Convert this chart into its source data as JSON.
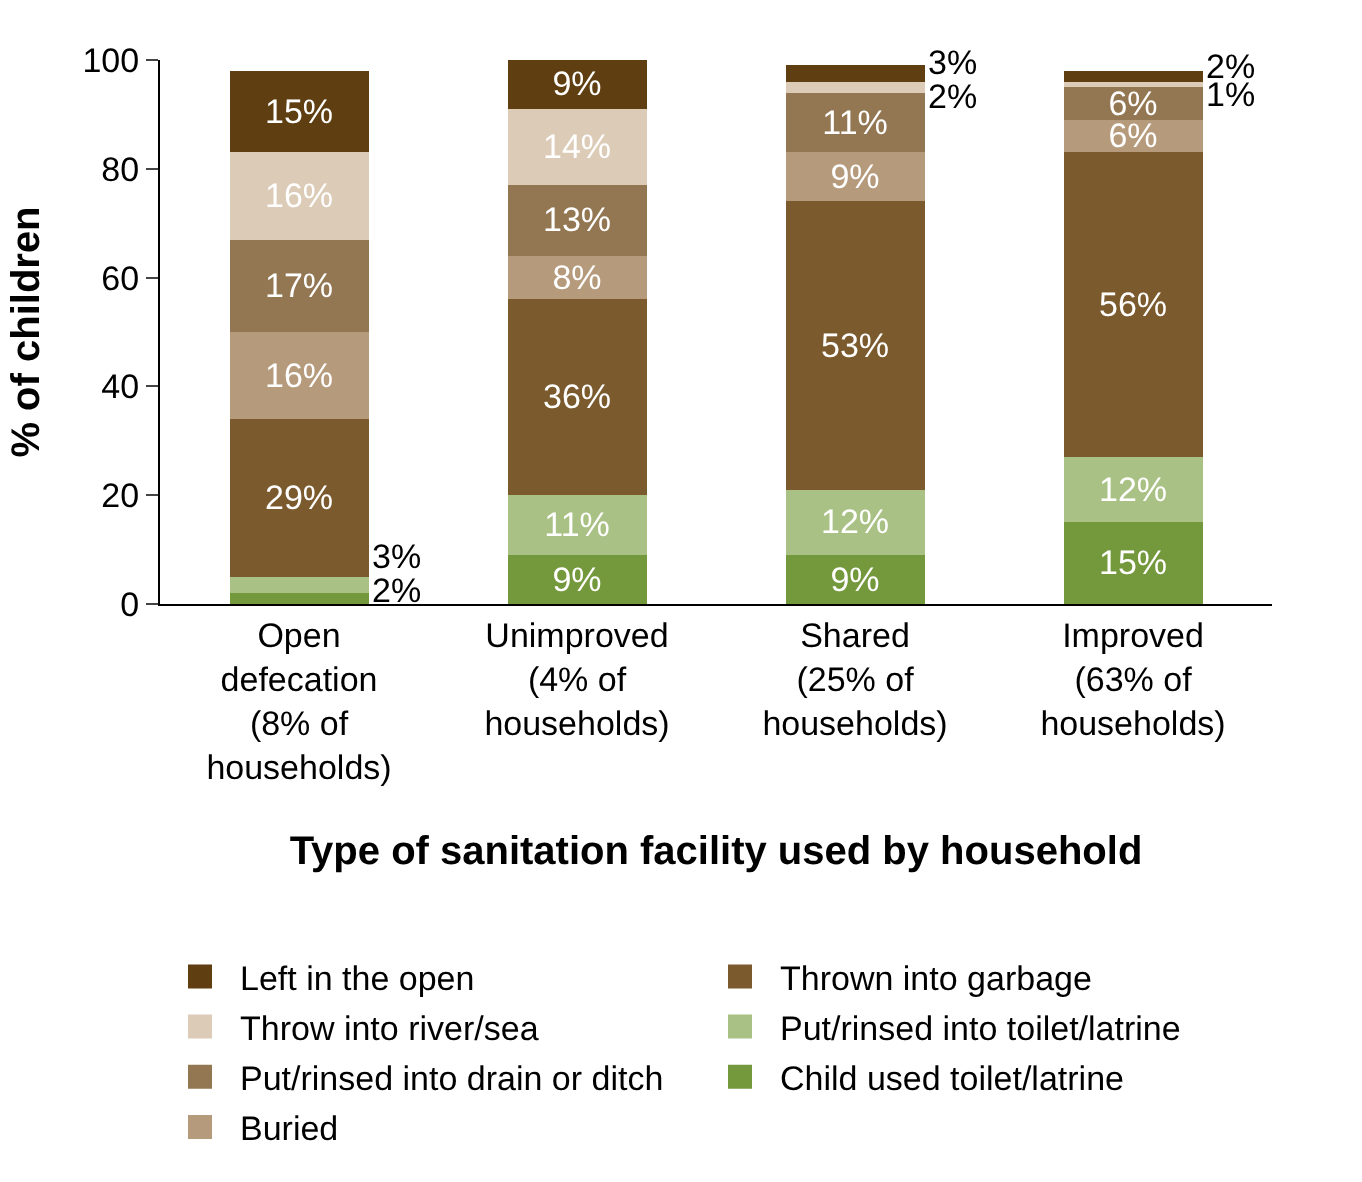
{
  "chart_data": {
    "type": "bar",
    "stacked": true,
    "xlabel": "Type of sanitation facility used by household",
    "ylabel": "% of children",
    "categories": [
      "Open\ndefecation\n(8% of\nhouseholds)",
      "Unimproved\n(4% of\nhouseholds)",
      "Shared\n(25% of\nhouseholds)",
      "Improved\n(63% of\nhouseholds)"
    ],
    "series": [
      {
        "name": "Child used toilet/latrine",
        "color": "#74983c",
        "values": [
          2,
          9,
          9,
          15
        ],
        "value_labels": [
          "2%",
          "9%",
          "9%",
          "15%"
        ]
      },
      {
        "name": "Put/rinsed into toilet/latrine",
        "color": "#a9c184",
        "values": [
          3,
          11,
          12,
          12
        ],
        "value_labels": [
          "3%",
          "11%",
          "12%",
          "12%"
        ]
      },
      {
        "name": "Thrown into garbage",
        "color": "#7b5a2d",
        "values": [
          29,
          36,
          53,
          56
        ],
        "value_labels": [
          "29%",
          "36%",
          "53%",
          "56%"
        ]
      },
      {
        "name": "Buried",
        "color": "#b59b7c",
        "values": [
          16,
          8,
          9,
          6
        ],
        "value_labels": [
          "16%",
          "8%",
          "9%",
          "6%"
        ]
      },
      {
        "name": "Put/rinsed into drain or ditch",
        "color": "#937752",
        "values": [
          17,
          13,
          11,
          6
        ],
        "value_labels": [
          "17%",
          "13%",
          "11%",
          "6%"
        ]
      },
      {
        "name": "Throw into river/sea",
        "color": "#dccbb7",
        "values": [
          16,
          14,
          2,
          1
        ],
        "value_labels": [
          "16%",
          "14%",
          "2%",
          "1%"
        ]
      },
      {
        "name": "Left in the open",
        "color": "#5f3f12",
        "values": [
          15,
          9,
          3,
          2
        ],
        "value_labels": [
          "15%",
          "9%",
          "3%",
          "2%"
        ]
      }
    ],
    "ylim": [
      0,
      100
    ],
    "yticks": [
      0,
      20,
      40,
      60,
      80,
      100
    ],
    "legend": "bottom"
  }
}
